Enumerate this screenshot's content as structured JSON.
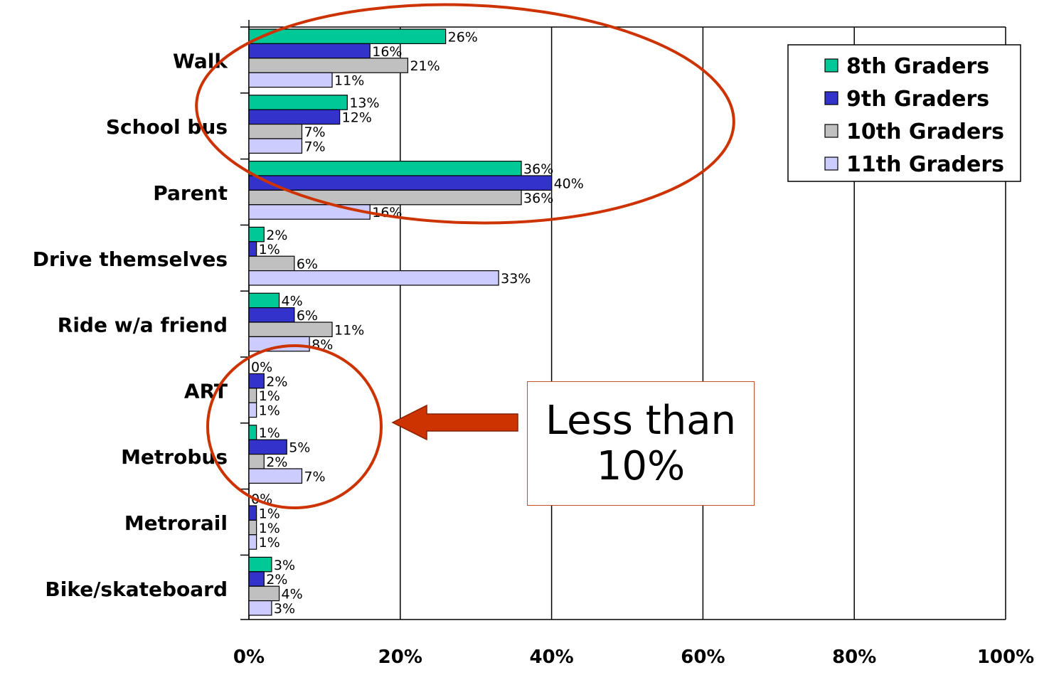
{
  "chart_data": {
    "type": "bar",
    "orientation": "horizontal",
    "categories": [
      "Walk",
      "School bus",
      "Parent",
      "Drive themselves",
      "Ride w/a friend",
      "ART",
      "Metrobus",
      "Metrorail",
      "Bike/skateboard"
    ],
    "series": [
      {
        "name": "8th Graders",
        "color": "#00c896",
        "values": [
          26,
          13,
          36,
          2,
          4,
          0,
          1,
          0,
          3
        ]
      },
      {
        "name": "9th Graders",
        "color": "#3333cc",
        "values": [
          16,
          12,
          40,
          1,
          6,
          2,
          5,
          1,
          2
        ]
      },
      {
        "name": "10th Graders",
        "color": "#c0c0c0",
        "values": [
          21,
          7,
          36,
          6,
          11,
          1,
          2,
          1,
          4
        ]
      },
      {
        "name": "11th Graders",
        "color": "#ccccff",
        "values": [
          11,
          7,
          16,
          33,
          8,
          1,
          7,
          1,
          3
        ]
      }
    ],
    "x_ticks": [
      "0%",
      "20%",
      "40%",
      "60%",
      "80%",
      "100%"
    ],
    "xlim": [
      0,
      100
    ],
    "grid": true,
    "legend_position": "top-right",
    "data_label_suffix": "%"
  },
  "callout": {
    "text": "Less than 10%",
    "arrow_color": "#cc3300",
    "highlight_color": "#cc3300"
  }
}
